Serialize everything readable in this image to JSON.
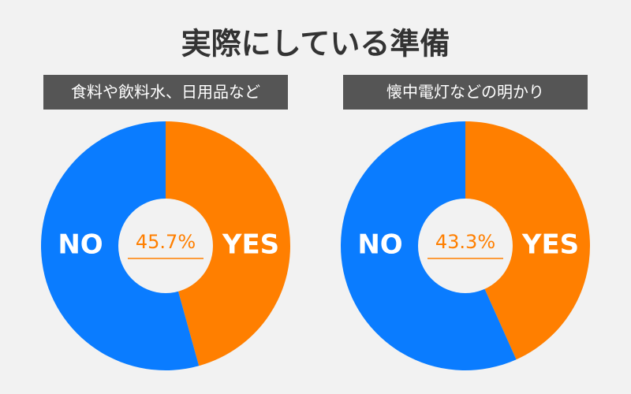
{
  "title": "実際にしている準備",
  "chart_data": [
    {
      "type": "pie",
      "title": "食料や飲料水、日用品など",
      "categories": [
        "YES",
        "NO"
      ],
      "values": [
        45.7,
        54.3
      ],
      "value_labels": [
        "45.7%",
        null
      ],
      "colors": [
        "#ff7f00",
        "#0a7cff"
      ]
    },
    {
      "type": "pie",
      "title": "懐中電灯などの明かり",
      "categories": [
        "YES",
        "NO"
      ],
      "values": [
        43.3,
        56.7
      ],
      "value_labels": [
        "43.3%",
        null
      ],
      "colors": [
        "#ff7f00",
        "#0a7cff"
      ]
    }
  ]
}
